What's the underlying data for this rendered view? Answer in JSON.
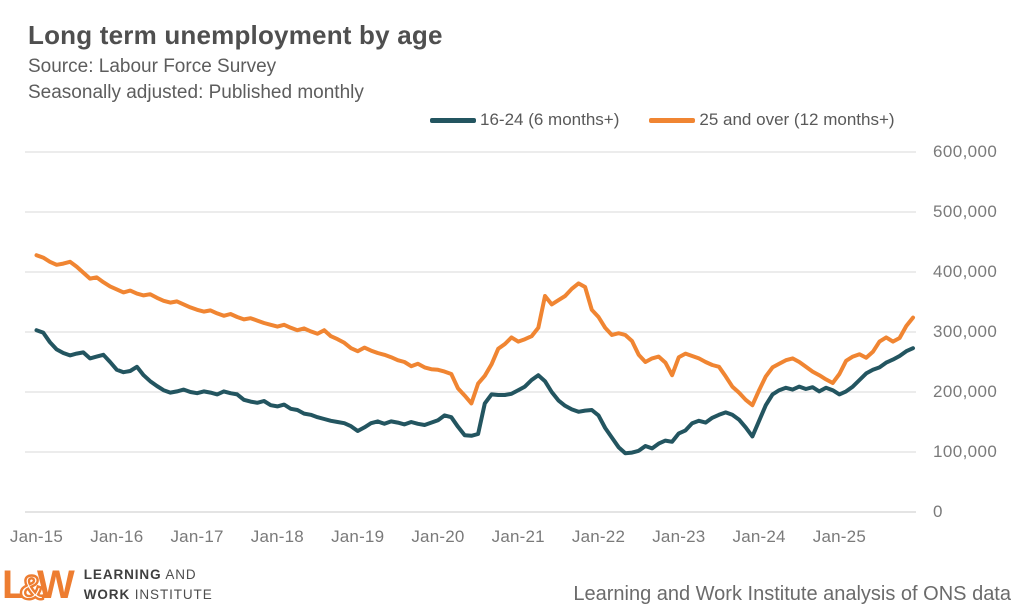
{
  "header": {
    "title": "Long term unemployment by age",
    "subtitle1": "Source: Labour Force Survey",
    "subtitle2": "Seasonally adjusted: Published monthly"
  },
  "legend": [
    {
      "label": "16-24 (6 months+)",
      "color": "#235560"
    },
    {
      "label": "25 and over (12 months+)",
      "color": "#F08532"
    }
  ],
  "chart_data": {
    "type": "line",
    "title": "Long term unemployment by age",
    "xlabel": "",
    "ylabel": "",
    "ylim": [
      0,
      600000
    ],
    "grid": true,
    "legend_position": "top",
    "gridline_color": "#D9D9D9",
    "x_tick_labels": [
      "Jan-15",
      "Jan-16",
      "Jan-17",
      "Jan-18",
      "Jan-19",
      "Jan-20",
      "Jan-21",
      "Jan-22",
      "Jan-23",
      "Jan-24",
      "Jan-25"
    ],
    "x_tick_indices": [
      0,
      12,
      24,
      36,
      48,
      60,
      72,
      84,
      96,
      108,
      120
    ],
    "y_tick_labels": [
      "600,000",
      "500,000",
      "400,000",
      "300,000",
      "200,000",
      "100,000",
      "0"
    ],
    "y_tick_values": [
      600000,
      500000,
      400000,
      300000,
      200000,
      100000,
      0
    ],
    "x_start": "Jan-15",
    "x_interval": "monthly",
    "series": [
      {
        "name": "16-24 (6 months+)",
        "color": "#235560",
        "values": [
          303000,
          299000,
          283000,
          271000,
          265000,
          261000,
          264000,
          266000,
          256000,
          259000,
          262000,
          250000,
          237000,
          233000,
          235000,
          242000,
          228000,
          218000,
          210000,
          203000,
          199000,
          201000,
          204000,
          200000,
          198000,
          201000,
          199000,
          196000,
          201000,
          198000,
          196000,
          187000,
          184000,
          182000,
          185000,
          178000,
          176000,
          179000,
          172000,
          170000,
          164000,
          162000,
          158000,
          155000,
          152000,
          150000,
          148000,
          143000,
          135000,
          141000,
          148000,
          151000,
          147000,
          151000,
          149000,
          146000,
          150000,
          147000,
          145000,
          149000,
          153000,
          161000,
          158000,
          142000,
          128000,
          127000,
          130000,
          181000,
          196000,
          195000,
          195000,
          197000,
          203000,
          209000,
          220000,
          228000,
          218000,
          200000,
          186000,
          177000,
          171000,
          167000,
          169000,
          170000,
          161000,
          140000,
          124000,
          108000,
          98000,
          99000,
          102000,
          110000,
          106000,
          114000,
          119000,
          117000,
          131000,
          136000,
          148000,
          152000,
          149000,
          157000,
          162000,
          166000,
          162000,
          154000,
          141000,
          126000,
          152000,
          178000,
          196000,
          203000,
          207000,
          204000,
          209000,
          205000,
          208000,
          201000,
          207000,
          203000,
          196000,
          201000,
          209000,
          220000,
          231000,
          237000,
          241000,
          249000,
          254000,
          260000,
          268000,
          273000
        ]
      },
      {
        "name": "25 and over (12 months+)",
        "color": "#F08532",
        "values": [
          428000,
          424000,
          417000,
          412000,
          414000,
          417000,
          409000,
          399000,
          389000,
          391000,
          383000,
          376000,
          371000,
          366000,
          369000,
          364000,
          361000,
          363000,
          357000,
          352000,
          349000,
          351000,
          346000,
          341000,
          337000,
          334000,
          336000,
          331000,
          327000,
          330000,
          325000,
          321000,
          323000,
          319000,
          315000,
          312000,
          309000,
          312000,
          307000,
          303000,
          306000,
          301000,
          297000,
          303000,
          293000,
          288000,
          282000,
          273000,
          268000,
          274000,
          269000,
          265000,
          262000,
          258000,
          253000,
          250000,
          243000,
          247000,
          241000,
          238000,
          237000,
          234000,
          230000,
          206000,
          194000,
          181000,
          214000,
          227000,
          246000,
          272000,
          280000,
          291000,
          284000,
          288000,
          293000,
          307000,
          360000,
          346000,
          353000,
          360000,
          372000,
          381000,
          375000,
          337000,
          325000,
          307000,
          295000,
          298000,
          295000,
          285000,
          262000,
          250000,
          256000,
          259000,
          249000,
          228000,
          258000,
          264000,
          260000,
          256000,
          250000,
          245000,
          242000,
          226000,
          209000,
          199000,
          187000,
          178000,
          203000,
          226000,
          241000,
          247000,
          253000,
          256000,
          250000,
          242000,
          234000,
          228000,
          221000,
          215000,
          230000,
          252000,
          259000,
          263000,
          257000,
          267000,
          284000,
          291000,
          284000,
          290000,
          310000,
          324000
        ]
      }
    ]
  },
  "footer": {
    "logo_mark_l": "L",
    "logo_mark_amp": "&",
    "logo_mark_w": "W",
    "logo_line1_bold": "LEARNING",
    "logo_line1_rest": " AND",
    "logo_line2_bold": "WORK",
    "logo_line2_rest": " INSTITUTE",
    "attribution": "Learning and Work Institute analysis of ONS data"
  },
  "layout_colors": {
    "title": "#4f4f4f",
    "axis_text": "#7a7a7a",
    "logo_orange": "#ED7D31"
  }
}
